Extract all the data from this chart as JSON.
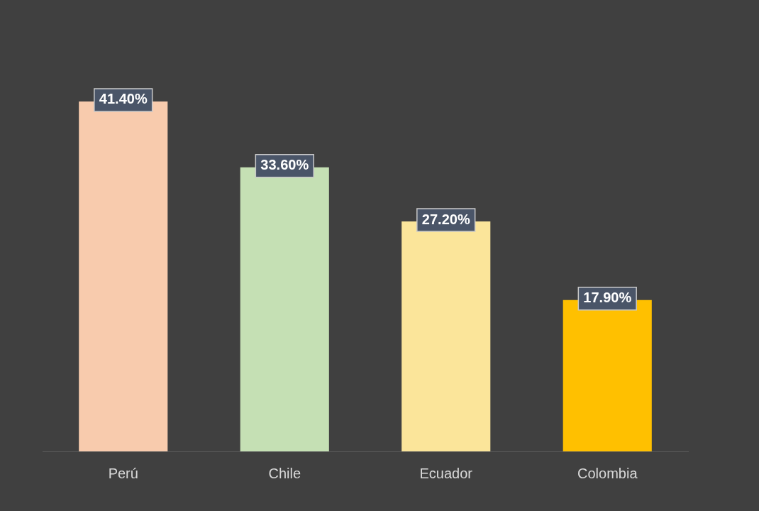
{
  "chart_data": {
    "type": "bar",
    "categories": [
      "Perú",
      "Chile",
      "Ecuador",
      "Colombia"
    ],
    "values": [
      41.4,
      33.6,
      27.2,
      17.9
    ],
    "colors": [
      "#f8cbad",
      "#c5e0b4",
      "#fbe59a",
      "#ffc000"
    ],
    "value_labels": [
      "41.40%",
      "33.60%",
      "27.20%",
      "17.90%"
    ],
    "grid": false,
    "legend": false
  }
}
